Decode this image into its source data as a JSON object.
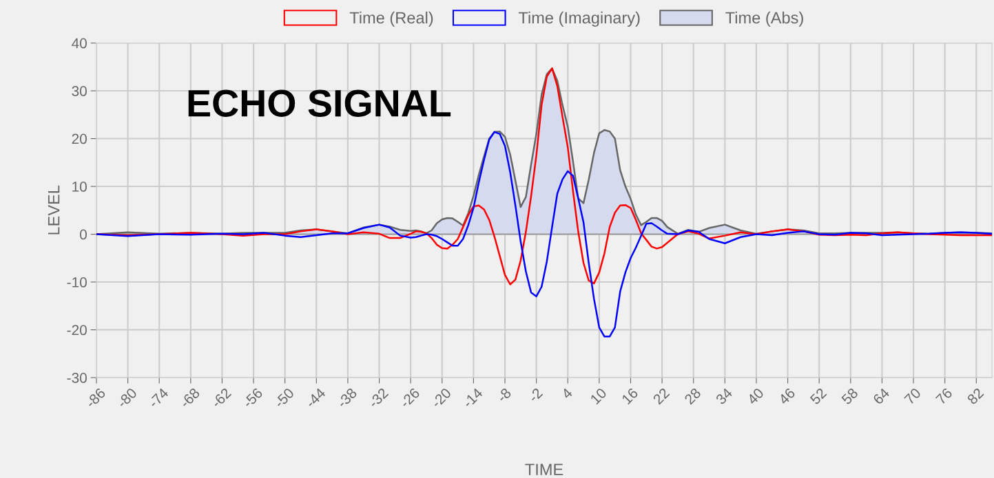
{
  "chart_data": {
    "type": "line",
    "title": "ECHO SIGNAL",
    "xlabel": "TIME",
    "ylabel": "LEVEL",
    "x": [
      -86,
      -80,
      -74,
      -68,
      -62,
      -58,
      -54,
      -50,
      -47,
      -44,
      -41,
      -38,
      -35,
      -32,
      -30,
      -28,
      -26,
      -25,
      -24,
      -23,
      -22,
      -21,
      -20,
      -19,
      -18,
      -17,
      -16,
      -15,
      -14,
      -13,
      -12,
      -11,
      -10,
      -9,
      -8,
      -7,
      -6,
      -5,
      -4,
      -3,
      -2,
      -1,
      0,
      1,
      2,
      3,
      4,
      5,
      6,
      7,
      8,
      9,
      10,
      11,
      12,
      13,
      14,
      15,
      16,
      17,
      18,
      19,
      20,
      21,
      22,
      23,
      25,
      27,
      29,
      31,
      34,
      37,
      40,
      43,
      46,
      49,
      52,
      55,
      58,
      61,
      64,
      67,
      70,
      73,
      76,
      79,
      82,
      85
    ],
    "series": [
      {
        "name": "Time (Real)",
        "color": "#ff0000",
        "values": [
          0,
          -0.2,
          0,
          0.3,
          0,
          -0.3,
          0,
          0,
          0.6,
          1.0,
          0.6,
          0,
          0.4,
          0.1,
          -0.8,
          -0.8,
          0.1,
          0.6,
          0.5,
          0.2,
          -0.8,
          -2.2,
          -2.9,
          -3.0,
          -2.2,
          -1.0,
          1.5,
          4.0,
          5.8,
          6.0,
          5.2,
          3.0,
          -0.5,
          -4.5,
          -8.5,
          -10.5,
          -9.5,
          -5.5,
          0.5,
          8,
          16.5,
          27,
          33,
          34.7,
          31,
          24.5,
          18.2,
          9,
          0.5,
          -6,
          -9.7,
          -10.3,
          -8,
          -4,
          1.5,
          4.5,
          6,
          6.1,
          5.5,
          3,
          0.2,
          -1.2,
          -2.6,
          -3,
          -2.7,
          -1.8,
          0,
          0.6,
          0.1,
          -0.9,
          -0.3,
          0.4,
          0,
          0.6,
          1.0,
          0.6,
          -0.1,
          -0.2,
          -0.1,
          -0.2,
          0.2,
          0.4,
          0.2,
          0,
          -0.1,
          -0.2,
          -0.2,
          -0.2
        ]
      },
      {
        "name": "Time (Imaginary)",
        "color": "#0000ff",
        "values": [
          0,
          -0.4,
          0,
          -0.1,
          0.1,
          0,
          0.3,
          -0.3,
          -0.6,
          -0.2,
          0.2,
          0.2,
          1.3,
          2.0,
          1.4,
          -0.3,
          -0.7,
          -0.6,
          -0.3,
          0,
          -0.1,
          -0.4,
          -1.0,
          -1.7,
          -2.4,
          -2.4,
          -1.0,
          1.9,
          5.5,
          10.8,
          15.5,
          19.8,
          21.4,
          21.0,
          18.5,
          13,
          6,
          -1.5,
          -7.8,
          -12.2,
          -13,
          -11,
          -5.7,
          1.5,
          8.5,
          11.5,
          13.2,
          12.2,
          7.5,
          2.5,
          -6,
          -13.5,
          -19.5,
          -21.4,
          -21.4,
          -19.5,
          -12,
          -8,
          -5,
          -2.8,
          -0.3,
          2.2,
          2.3,
          1.6,
          0.8,
          0.1,
          0,
          0.8,
          0.5,
          -1.0,
          -1.9,
          -0.6,
          0,
          -0.2,
          0.3,
          0.6,
          0,
          -0.1,
          0.3,
          0.2,
          -0.2,
          -0.1,
          0,
          0.1,
          0.3,
          0.4,
          0.3,
          0.1
        ]
      },
      {
        "name": "Time (Abs)",
        "type": "area",
        "color": "#666666",
        "values": [
          0,
          0.4,
          0.1,
          0.3,
          0.1,
          0.3,
          0.3,
          0.3,
          0.8,
          1.0,
          0.6,
          0.2,
          1.4,
          2.0,
          1.6,
          0.9,
          0.7,
          0.8,
          0.6,
          0.2,
          0.8,
          2.3,
          3.1,
          3.4,
          3.3,
          2.6,
          1.8,
          4.4,
          8.0,
          12.4,
          16.3,
          20.0,
          21.4,
          21.5,
          20.4,
          16.7,
          11.2,
          5.7,
          7.8,
          14.6,
          21,
          29.2,
          33.5,
          34.7,
          32.1,
          27,
          22.5,
          15.2,
          7.5,
          6.5,
          11.4,
          17,
          21.1,
          21.8,
          21.5,
          20,
          13.4,
          10,
          7.4,
          4.1,
          1.9,
          2.6,
          3.4,
          3.4,
          2.8,
          1.5,
          0.1,
          0.9,
          0.5,
          1.3,
          2.0,
          0.8,
          0.1,
          0.6,
          1.0,
          0.8,
          0.2,
          0.2,
          0.3,
          0.3,
          0.3,
          0.4,
          0.2,
          0.1,
          0.3,
          0.4,
          0.3,
          0.2
        ]
      }
    ],
    "xlim": [
      -86,
      85
    ],
    "xticks": [
      -86,
      -80,
      -74,
      -68,
      -62,
      -56,
      -50,
      -44,
      -38,
      -32,
      -26,
      -20,
      -14,
      -8,
      -2,
      4,
      10,
      16,
      22,
      28,
      34,
      40,
      46,
      52,
      58,
      64,
      70,
      76,
      82
    ],
    "ylim": [
      -30,
      40
    ],
    "yticks": [
      -30,
      -20,
      -10,
      0,
      10,
      20,
      30,
      40
    ],
    "grid": true,
    "legend": "top",
    "marker": "none",
    "line_style": "solid"
  }
}
